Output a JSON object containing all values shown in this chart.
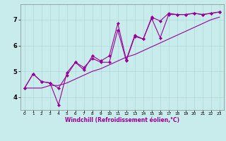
{
  "xlabel": "Windchill (Refroidissement éolien,°C)",
  "bg_color": "#c8ecec",
  "grid_color": "#b0d8d8",
  "line_color": "#990099",
  "xlim": [
    -0.5,
    23.5
  ],
  "ylim": [
    3.5,
    7.6
  ],
  "yticks": [
    4,
    5,
    6,
    7
  ],
  "xticks": [
    0,
    1,
    2,
    3,
    4,
    5,
    6,
    7,
    8,
    9,
    10,
    11,
    12,
    13,
    14,
    15,
    16,
    17,
    18,
    19,
    20,
    21,
    22,
    23
  ],
  "line1_x": [
    0,
    1,
    2,
    3,
    4,
    5,
    6,
    7,
    8,
    9,
    10,
    11,
    12,
    13,
    14,
    15,
    16,
    17,
    18,
    19,
    20,
    21,
    22,
    23
  ],
  "line1_y": [
    4.35,
    4.9,
    4.6,
    4.55,
    3.7,
    4.95,
    5.35,
    5.05,
    5.6,
    5.4,
    5.6,
    6.85,
    5.45,
    6.4,
    6.25,
    7.1,
    6.95,
    7.25,
    7.2,
    7.2,
    7.25,
    7.2,
    7.25,
    7.3
  ],
  "line2_x": [
    0,
    1,
    2,
    3,
    4,
    5,
    6,
    7,
    8,
    9,
    10,
    11,
    12,
    13,
    14,
    15,
    16,
    17,
    18,
    19,
    20,
    21,
    22,
    23
  ],
  "line2_y": [
    4.35,
    4.9,
    4.6,
    4.55,
    4.35,
    4.85,
    5.35,
    5.15,
    5.5,
    5.35,
    5.35,
    6.6,
    5.4,
    6.35,
    6.25,
    7.05,
    6.3,
    7.2,
    7.2,
    7.2,
    7.25,
    7.2,
    7.25,
    7.3
  ],
  "line3_x": [
    0,
    1,
    2,
    3,
    4,
    5,
    6,
    7,
    8,
    9,
    10,
    11,
    12,
    13,
    14,
    15,
    16,
    17,
    18,
    19,
    20,
    21,
    22,
    23
  ],
  "line3_y": [
    4.35,
    4.35,
    4.35,
    4.45,
    4.45,
    4.55,
    4.7,
    4.85,
    5.0,
    5.1,
    5.25,
    5.4,
    5.55,
    5.65,
    5.8,
    5.95,
    6.1,
    6.25,
    6.4,
    6.55,
    6.7,
    6.85,
    7.0,
    7.1
  ],
  "xlabel_fontsize": 5.5,
  "xlabel_color": "#990099",
  "ytick_fontsize": 6,
  "xtick_fontsize": 4.2,
  "linewidth": 0.8,
  "markersize": 2.2
}
